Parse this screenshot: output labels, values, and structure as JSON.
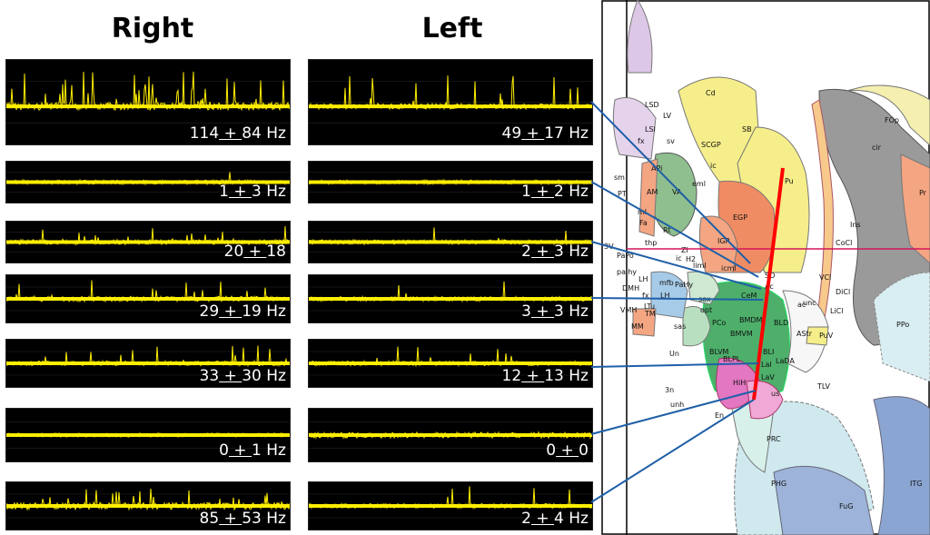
{
  "headings": {
    "right": "Right",
    "left": "Left"
  },
  "right_traces": [
    {
      "mean": "114",
      "sd": "84",
      "unit": "Hz",
      "noise": 0.9,
      "spikes": 0.9
    },
    {
      "mean": "1",
      "sd": "3",
      "unit": "Hz",
      "noise": 0.25,
      "spikes": 0.02
    },
    {
      "mean": "20",
      "sd": "18",
      "unit": "",
      "noise": 0.35,
      "spikes": 0.3
    },
    {
      "mean": "29",
      "sd": "19",
      "unit": "Hz",
      "noise": 0.45,
      "spikes": 0.4
    },
    {
      "mean": "33",
      "sd": "30",
      "unit": "Hz",
      "noise": 0.35,
      "spikes": 0.5
    },
    {
      "mean": "0",
      "sd": "1",
      "unit": "Hz",
      "noise": 0.2,
      "spikes": 0.0
    },
    {
      "mean": "85",
      "sd": "53",
      "unit": "Hz",
      "noise": 0.8,
      "spikes": 0.7
    }
  ],
  "left_traces": [
    {
      "mean": "49",
      "sd": "17",
      "unit": "Hz",
      "noise": 0.45,
      "spikes": 0.5
    },
    {
      "mean": "1",
      "sd": "2",
      "unit": "Hz",
      "noise": 0.25,
      "spikes": 0.02
    },
    {
      "mean": "2",
      "sd": "3",
      "unit": "Hz",
      "noise": 0.3,
      "spikes": 0.05
    },
    {
      "mean": "3",
      "sd": "3",
      "unit": "Hz",
      "noise": 0.3,
      "spikes": 0.06
    },
    {
      "mean": "12",
      "sd": "13",
      "unit": "Hz",
      "noise": 0.3,
      "spikes": 0.2
    },
    {
      "mean": "0",
      "sd": "0",
      "unit": "",
      "noise": 0.55,
      "spikes": 0.0
    },
    {
      "mean": "2",
      "sd": "4",
      "unit": "Hz",
      "noise": 0.3,
      "spikes": 0.05
    }
  ],
  "atlas_regions": [
    "LSD",
    "LV",
    "LSI",
    "fx",
    "sv",
    "Cd",
    "SB",
    "SCGP",
    "sm",
    "APi",
    "AM",
    "PT",
    "Fa",
    "eml",
    "ml",
    "VA",
    "ic",
    "Pu",
    "Rt",
    "EGP",
    "3V",
    "thp",
    "PaPo",
    "palhy",
    "IGP",
    "ZI",
    "H2",
    "ic",
    "liml",
    "icml",
    "SO",
    "Ac",
    "DMH",
    "LH",
    "mfb",
    "PaHy",
    "LTu",
    "fx",
    "LH",
    "sox",
    "opt",
    "CeM",
    "ac",
    "VMH",
    "TM",
    "MM",
    "sas",
    "PCo",
    "BMDM",
    "BLD",
    "BMVM",
    "AStr",
    "BLVM",
    "BLPL",
    "BLI",
    "LaI",
    "LaDA",
    "Un",
    "HiH",
    "LaV",
    "us",
    "3n",
    "unh",
    "En",
    "TLV",
    "PRC",
    "PHG",
    "FuG",
    "ITG",
    "unc",
    "CoCl",
    "VCl",
    "DiCl",
    "LiCl",
    "PuV",
    "Ins",
    "cir",
    "FOp",
    "PPo",
    "Pr"
  ],
  "colors": {
    "trace_signal": "#ffee00",
    "trace_bg": "#000000",
    "connector": "#1f5fa8",
    "electrode": "#ff0000",
    "reference_line": "#d4145a"
  }
}
